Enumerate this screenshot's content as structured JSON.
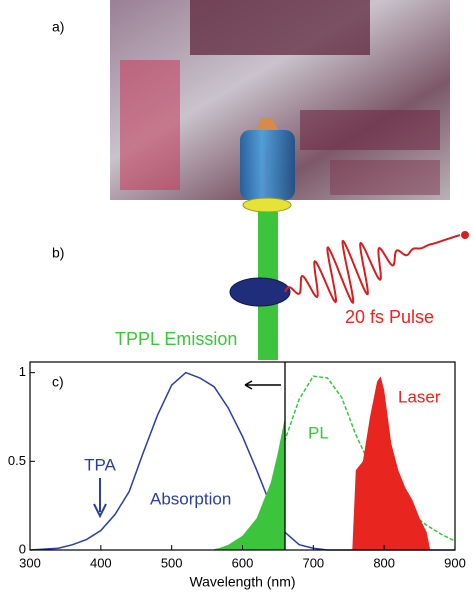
{
  "panels": {
    "a": "a)",
    "b": "b)"
  },
  "diagram": {
    "emission_label": "TPPL Emission",
    "pulse_label": "20 fs Pulse"
  },
  "chart_data": {
    "type": "line",
    "label": "c)",
    "x_label": "Wavelength (nm)",
    "xlim": [
      300,
      900
    ],
    "xticks": [
      300,
      400,
      500,
      600,
      700,
      800,
      900
    ],
    "ylim": [
      0,
      1.06
    ],
    "yticks": [
      0,
      0.5,
      1
    ],
    "vline": 660,
    "annotations": [
      {
        "text": "TPA"
      }
    ],
    "series": [
      {
        "name": "Absorption",
        "color": "#2a3fa0",
        "style": "solid",
        "x": [
          300,
          320,
          340,
          360,
          380,
          400,
          420,
          440,
          460,
          480,
          500,
          520,
          540,
          560,
          580,
          600,
          620,
          640,
          660,
          680,
          700,
          720,
          760,
          800,
          840,
          900
        ],
        "values": [
          0,
          0.005,
          0.01,
          0.03,
          0.06,
          0.11,
          0.2,
          0.33,
          0.55,
          0.76,
          0.93,
          1.0,
          0.97,
          0.92,
          0.8,
          0.64,
          0.45,
          0.25,
          0.1,
          0.03,
          0.01,
          0,
          0,
          0,
          0,
          0
        ]
      },
      {
        "name": "PL",
        "color": "#3cc43c",
        "style": "dashed",
        "x": [
          560,
          580,
          600,
          620,
          640,
          660,
          680,
          700,
          720,
          740,
          760,
          780,
          800,
          820,
          840,
          860,
          880,
          900
        ],
        "values": [
          0,
          0.02,
          0.06,
          0.15,
          0.35,
          0.62,
          0.85,
          0.98,
          0.97,
          0.86,
          0.65,
          0.48,
          0.35,
          0.27,
          0.2,
          0.14,
          0.09,
          0.05
        ]
      },
      {
        "color": "#3cc43c",
        "style": "area",
        "x": [
          560,
          580,
          600,
          620,
          640,
          650,
          660
        ],
        "values": [
          0,
          0.03,
          0.08,
          0.18,
          0.38,
          0.55,
          0.75
        ]
      },
      {
        "name": "Laser",
        "color": "#e8251e",
        "style": "area",
        "x": [
          755,
          760,
          770,
          780,
          790,
          795,
          800,
          810,
          820,
          830,
          840,
          850,
          860,
          865
        ],
        "values": [
          0,
          0.45,
          0.5,
          0.75,
          0.95,
          0.98,
          0.9,
          0.6,
          0.45,
          0.35,
          0.28,
          0.18,
          0.1,
          0
        ]
      }
    ]
  }
}
